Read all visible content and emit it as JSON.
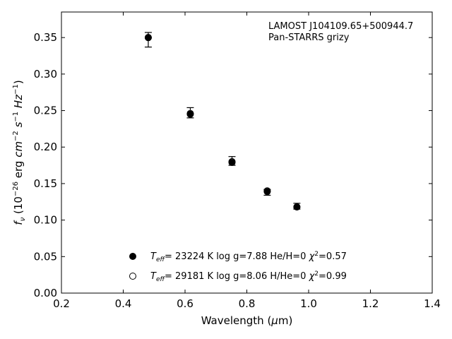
{
  "chart_data": {
    "type": "scatter",
    "xlabel": "Wavelength (μm)",
    "ylabel": "f_ν (10^−26 erg cm^−2 s^−1 Hz^−1)",
    "xlim": [
      0.2,
      1.4
    ],
    "ylim": [
      0.0,
      0.385
    ],
    "xticks": [
      0.2,
      0.4,
      0.6,
      0.8,
      1.0,
      1.2,
      1.4
    ],
    "xtick_labels": [
      "0.2",
      "0.4",
      "0.6",
      "0.8",
      "1.0",
      "1.2",
      "1.4"
    ],
    "yticks": [
      0.0,
      0.05,
      0.1,
      0.15,
      0.2,
      0.25,
      0.3,
      0.35
    ],
    "ytick_labels": [
      "0.00",
      "0.05",
      "0.10",
      "0.15",
      "0.20",
      "0.25",
      "0.30",
      "0.35"
    ],
    "annotation_lines": [
      "LAMOST J104109.65+500944.7",
      "Pan-STARRS grizy"
    ],
    "grid": false,
    "legend_position": "lower-center",
    "series": [
      {
        "marker": "filled-circle",
        "legend_teff": "23224",
        "legend_rest": "K  log g=7.88  He/H=0  ",
        "legend_chi": "=0.57",
        "x": [
          0.481,
          0.617,
          0.752,
          0.866,
          0.962
        ],
        "y": [
          0.35,
          0.245,
          0.179,
          0.139,
          0.118
        ]
      },
      {
        "marker": "open-circle",
        "legend_teff": "29181",
        "legend_rest": "K  log g=8.06  H/He=0  ",
        "legend_chi": "=0.99",
        "x": [
          0.481,
          0.617,
          0.752,
          0.866,
          0.962
        ],
        "y": [
          0.35,
          0.246,
          0.18,
          0.14,
          0.118
        ]
      }
    ],
    "observations": {
      "x": [
        0.481,
        0.617,
        0.752,
        0.866,
        0.962
      ],
      "y": [
        0.347,
        0.247,
        0.181,
        0.138,
        0.119
      ],
      "err": [
        0.01,
        0.007,
        0.006,
        0.004,
        0.004
      ]
    },
    "colors": {
      "axes": "#000000",
      "marker": "#000000",
      "background": "#ffffff"
    }
  }
}
